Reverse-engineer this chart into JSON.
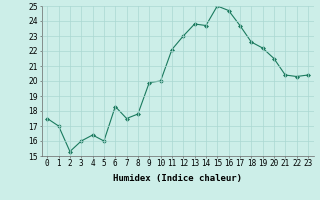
{
  "x": [
    0,
    1,
    2,
    3,
    4,
    5,
    6,
    7,
    8,
    9,
    10,
    11,
    12,
    13,
    14,
    15,
    16,
    17,
    18,
    19,
    20,
    21,
    22,
    23
  ],
  "y": [
    17.5,
    17.0,
    15.3,
    16.0,
    16.4,
    16.0,
    18.3,
    17.5,
    17.8,
    19.9,
    20.0,
    22.1,
    23.0,
    23.8,
    23.7,
    25.0,
    24.7,
    23.7,
    22.6,
    22.2,
    21.5,
    20.4,
    20.3,
    20.4
  ],
  "line_color": "#1a7a5e",
  "marker": "D",
  "marker_size": 2,
  "bg_color": "#cceee8",
  "grid_color": "#aad8d2",
  "xlabel": "Humidex (Indice chaleur)",
  "ylim": [
    15,
    25
  ],
  "xlim": [
    -0.5,
    23.5
  ],
  "yticks": [
    15,
    16,
    17,
    18,
    19,
    20,
    21,
    22,
    23,
    24,
    25
  ],
  "xtick_labels": [
    "0",
    "1",
    "2",
    "3",
    "4",
    "5",
    "6",
    "7",
    "8",
    "9",
    "10",
    "11",
    "12",
    "13",
    "14",
    "15",
    "16",
    "17",
    "18",
    "19",
    "20",
    "21",
    "22",
    "23"
  ],
  "xlabel_fontsize": 6.5,
  "tick_fontsize": 5.5,
  "linewidth": 0.8
}
